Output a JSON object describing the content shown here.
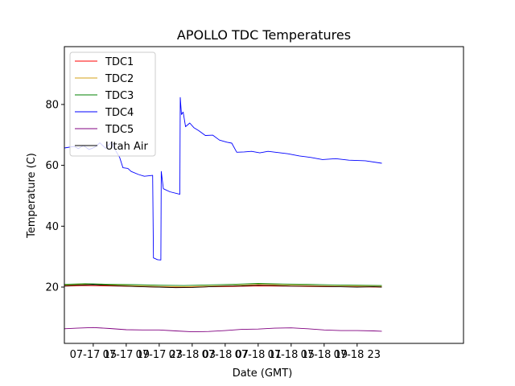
{
  "chart_data": {
    "type": "line",
    "title": "APOLLO TDC Temperatures",
    "xlabel": "Date (GMT)",
    "ylabel": "Temperature (C)",
    "xlim": [
      11.5,
      59.9
    ],
    "ylim": [
      1.5,
      99
    ],
    "grid": false,
    "legend_position": "top-left",
    "x_unit": "hours since 07-17 00:00 GMT",
    "x_ticks": [
      {
        "x": 15,
        "label": "07-17 15"
      },
      {
        "x": 19,
        "label": "07-17 19"
      },
      {
        "x": 23,
        "label": "07-17 23"
      },
      {
        "x": 27,
        "label": "07-18 03"
      },
      {
        "x": 31,
        "label": "07-18 07"
      },
      {
        "x": 35,
        "label": "07-18 11"
      },
      {
        "x": 39,
        "label": "07-18 15"
      },
      {
        "x": 43,
        "label": "07-18 19"
      },
      {
        "x": 47,
        "label": "07-18 23"
      }
    ],
    "y_ticks": [
      {
        "y": 20,
        "label": "20"
      },
      {
        "y": 40,
        "label": "40"
      },
      {
        "y": 60,
        "label": "60"
      },
      {
        "y": 80,
        "label": "80"
      }
    ],
    "series": [
      {
        "name": "TDC1",
        "color": "#ff0000",
        "x": [
          11.5,
          14,
          17,
          20,
          23,
          26,
          29,
          32,
          35,
          38,
          41,
          44,
          47,
          50
        ],
        "values": [
          20.3,
          20.5,
          20.4,
          20.2,
          20.0,
          19.9,
          20.1,
          20.2,
          20.4,
          20.3,
          20.2,
          20.1,
          20.1,
          20.0
        ]
      },
      {
        "name": "TDC2",
        "color": "#d4a017",
        "x": [
          11.5,
          14,
          17,
          20,
          23,
          26,
          29,
          32,
          35,
          38,
          41,
          44,
          47,
          50
        ],
        "values": [
          20.6,
          20.9,
          20.7,
          20.4,
          20.2,
          20.1,
          20.3,
          20.5,
          20.9,
          20.7,
          20.5,
          20.3,
          20.3,
          20.2
        ]
      },
      {
        "name": "TDC3",
        "color": "#008000",
        "x": [
          11.5,
          14,
          17,
          20,
          23,
          26,
          29,
          32,
          35,
          38,
          41,
          44,
          47,
          50
        ],
        "values": [
          20.9,
          21.1,
          20.9,
          20.8,
          20.6,
          20.5,
          20.7,
          20.9,
          21.2,
          21.0,
          20.9,
          20.7,
          20.6,
          20.5
        ]
      },
      {
        "name": "TDC4",
        "color": "#0000ff",
        "x": [
          11.5,
          12.7,
          13.2,
          13.8,
          14.5,
          15.2,
          15.8,
          16.5,
          17.2,
          17.6,
          18.2,
          18.6,
          19.2,
          19.6,
          20.5,
          21.2,
          22.2,
          22.3,
          22.8,
          23.2,
          23.25,
          23.5,
          24.3,
          25.5,
          25.55,
          25.7,
          25.9,
          26.2,
          26.7,
          27.2,
          27.8,
          28.6,
          29.5,
          30.3,
          31.2,
          31.8,
          32.4,
          33.3,
          34.2,
          35.2,
          36.2,
          37.4,
          38.6,
          40.0,
          41.4,
          42.8,
          44.4,
          46.0,
          48.0,
          50.0
        ],
        "values": [
          65.7,
          66.2,
          65.5,
          66.5,
          65.2,
          66.0,
          67.4,
          65.6,
          67.6,
          65.4,
          62.6,
          59.2,
          59.0,
          58.0,
          57.0,
          56.4,
          56.7,
          29.6,
          29.0,
          28.9,
          58.0,
          52.3,
          51.3,
          50.5,
          82.3,
          76.7,
          77.5,
          72.7,
          73.9,
          72.4,
          71.4,
          69.8,
          69.9,
          68.3,
          67.6,
          67.3,
          64.3,
          64.4,
          64.6,
          64.1,
          64.6,
          64.2,
          63.8,
          63.1,
          62.6,
          61.9,
          62.2,
          61.7,
          61.5,
          60.7
        ]
      },
      {
        "name": "TDC5",
        "color": "#800080",
        "x": [
          11.5,
          13,
          15,
          17,
          19,
          21,
          23,
          25,
          27,
          29,
          31,
          33,
          35,
          37,
          39,
          41,
          43,
          45,
          47,
          49,
          50
        ],
        "values": [
          6.3,
          6.5,
          6.7,
          6.4,
          6.0,
          5.9,
          5.9,
          5.6,
          5.3,
          5.4,
          5.7,
          6.1,
          6.2,
          6.5,
          6.6,
          6.3,
          5.9,
          5.7,
          5.7,
          5.6,
          5.5
        ]
      },
      {
        "name": "Utah Air",
        "color": "#000000",
        "x": [
          11.5,
          13,
          15,
          17,
          19,
          21,
          23,
          25,
          27,
          29,
          31,
          33,
          35,
          37,
          39,
          41,
          43,
          45,
          47,
          49,
          50
        ],
        "values": [
          20.4,
          20.6,
          20.8,
          20.5,
          20.3,
          20.1,
          20.0,
          19.8,
          19.9,
          20.1,
          20.3,
          20.4,
          20.6,
          20.5,
          20.3,
          20.3,
          20.2,
          20.1,
          20.0,
          20.1,
          20.0
        ]
      }
    ]
  }
}
